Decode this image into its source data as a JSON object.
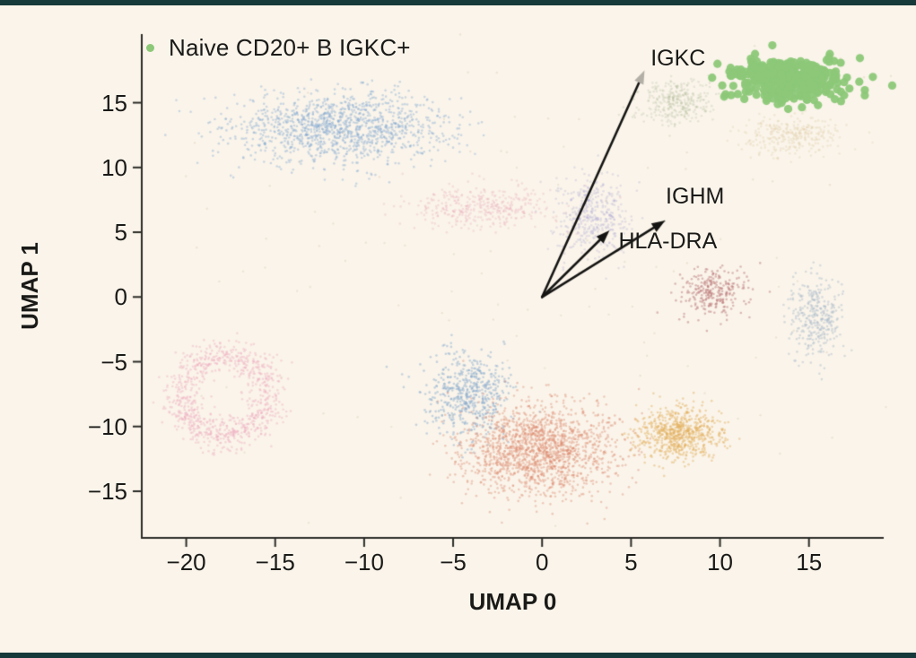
{
  "figure": {
    "background": "#faf4ea",
    "border_band_color": "#16393a"
  },
  "legend": {
    "label": "Naive CD20+ B IGKC+",
    "marker_color": "#8cc878"
  },
  "chart_data": {
    "type": "scatter",
    "title": "",
    "xlabel": "UMAP 0",
    "ylabel": "UMAP 1",
    "xlim": [
      -22.5,
      19.2
    ],
    "ylim": [
      -18.6,
      20.3
    ],
    "x_ticks": [
      -20,
      -15,
      -10,
      -5,
      0,
      5,
      10,
      15
    ],
    "y_ticks": [
      -15,
      -10,
      -5,
      0,
      5,
      10,
      15
    ],
    "grid": false,
    "axis_color": "#2b2b27",
    "legend_position": "top-left",
    "legend_entries": [
      {
        "label": "Naive CD20+ B IGKC+",
        "color": "#8cc878"
      }
    ],
    "clusters": [
      {
        "name": "blue-arc-top-left",
        "color": "#7fa5cf",
        "alpha": 0.38,
        "count": 1300,
        "center": [
          -11.3,
          13.1
        ],
        "sigma": [
          3.1,
          1.35
        ],
        "size": 1.3,
        "shape": "gauss"
      },
      {
        "name": "faint-pink-mid-left",
        "color": "#e6a0b5",
        "alpha": 0.28,
        "count": 380,
        "center": [
          -3.4,
          7.0
        ],
        "sigma": [
          2.0,
          0.8
        ],
        "size": 1.3,
        "shape": "gauss"
      },
      {
        "name": "faint-lavender-center",
        "color": "#a49fd2",
        "alpha": 0.26,
        "count": 420,
        "center": [
          2.9,
          6.2
        ],
        "sigma": [
          1.05,
          1.55
        ],
        "size": 1.3,
        "shape": "gauss"
      },
      {
        "name": "faint-sage-top-center",
        "color": "#aab694",
        "alpha": 0.25,
        "count": 320,
        "center": [
          7.6,
          15.1
        ],
        "sigma": [
          1.0,
          0.85
        ],
        "size": 1.3,
        "shape": "gauss"
      },
      {
        "name": "faint-tan-below-green",
        "color": "#ddc9a2",
        "alpha": 0.3,
        "count": 300,
        "center": [
          14.1,
          12.5
        ],
        "sigma": [
          1.25,
          0.8
        ],
        "size": 1.3,
        "shape": "gauss"
      },
      {
        "name": "faint-red-right",
        "color": "#bd7d7d",
        "alpha": 0.5,
        "count": 270,
        "center": [
          9.6,
          0.3
        ],
        "sigma": [
          0.95,
          0.95
        ],
        "size": 1.3,
        "shape": "gauss"
      },
      {
        "name": "faint-bluegray-right",
        "color": "#a7b7c7",
        "alpha": 0.42,
        "count": 330,
        "center": [
          15.4,
          -1.5
        ],
        "sigma": [
          0.75,
          1.55
        ],
        "size": 1.3,
        "shape": "gauss"
      },
      {
        "name": "pink-ring-bottom-left",
        "color": "#eda9be",
        "alpha": 0.4,
        "count": 850,
        "center": [
          -17.9,
          -7.6
        ],
        "sigma": [
          0.9,
          0.9
        ],
        "size": 1.3,
        "shape": "ring",
        "ring_radius": [
          2.5,
          3.1
        ]
      },
      {
        "name": "blue-bottom-center",
        "color": "#86a9cc",
        "alpha": 0.45,
        "count": 560,
        "center": [
          -4.1,
          -7.6
        ],
        "sigma": [
          1.15,
          1.6
        ],
        "size": 1.3,
        "shape": "gauss"
      },
      {
        "name": "salmon-bottom-center",
        "color": "#db8a6f",
        "alpha": 0.4,
        "count": 1650,
        "center": [
          -0.2,
          -11.8
        ],
        "sigma": [
          2.1,
          1.75
        ],
        "size": 1.3,
        "shape": "gauss"
      },
      {
        "name": "yellow-bottom-right",
        "color": "#e2b160",
        "alpha": 0.46,
        "count": 700,
        "center": [
          7.7,
          -10.6
        ],
        "sigma": [
          1.2,
          1.05
        ],
        "size": 1.3,
        "shape": "gauss"
      },
      {
        "name": "sparse-background-noise",
        "color": "#d8c7aa",
        "alpha": 0.35,
        "count": 140,
        "center": [
          -1.0,
          0.0
        ],
        "sigma": [
          13.0,
          11.0
        ],
        "size": 1.2,
        "shape": "gauss"
      },
      {
        "name": "naive-cd20-b-igkc-green",
        "color": "#8cc878",
        "alpha": 0.95,
        "count": 380,
        "center": [
          13.9,
          16.8
        ],
        "sigma": [
          1.45,
          0.8
        ],
        "size": 4.6,
        "shape": "gauss",
        "highlight": true
      }
    ],
    "arrows": [
      {
        "label": "IGKC",
        "from": [
          0,
          0
        ],
        "to": [
          5.76,
          17.5
        ],
        "label_pos": [
          6.1,
          19.4
        ],
        "color": "#141412",
        "head_color": "#b3afa7"
      },
      {
        "label": "IGHM",
        "from": [
          0,
          0
        ],
        "to": [
          6.92,
          5.9
        ],
        "label_pos": [
          6.95,
          8.75
        ],
        "color": "#141412",
        "head_color": "#141412"
      },
      {
        "label": "HLA-DRA",
        "from": [
          0,
          0
        ],
        "to": [
          3.79,
          5.14
        ],
        "label_pos": [
          4.3,
          5.25
        ],
        "color": "#141412",
        "head_color": "#141412"
      }
    ],
    "leader_lines": [
      {
        "from": [
          4.19,
          3.54
        ],
        "to": [
          6.92,
          5.9
        ],
        "color": "#b3afa7"
      }
    ]
  }
}
